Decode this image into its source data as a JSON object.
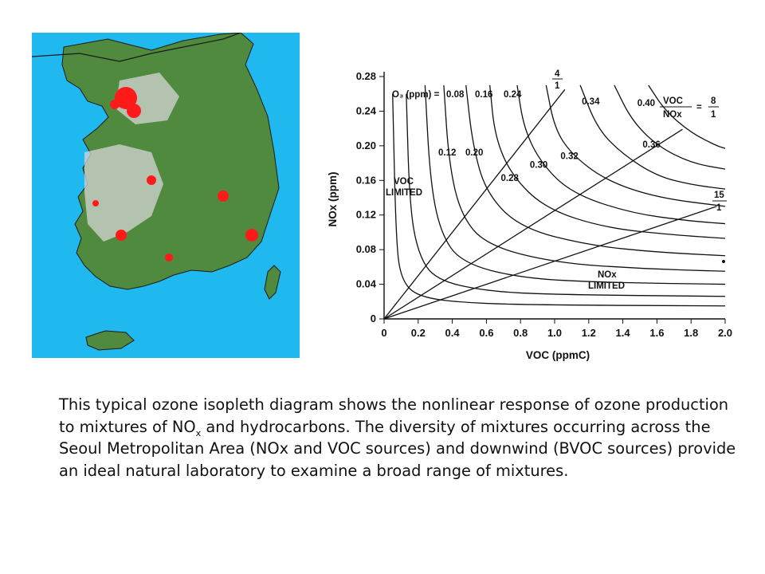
{
  "map": {
    "colors": {
      "sea": "#1fb8ef",
      "land": "#4f8a3e",
      "urban": "#ff1a1a",
      "bare": "#d6d6d6",
      "border": "#1a1a1a"
    }
  },
  "chart_data": {
    "type": "line",
    "xlabel": "VOC (ppmC)",
    "ylabel": "NOx (ppm)",
    "xlim": [
      0,
      2.0
    ],
    "ylim": [
      0,
      0.28
    ],
    "xticks": [
      "0",
      "0.2",
      "0.4",
      "0.6",
      "0.8",
      "1.0",
      "1.2",
      "1.4",
      "1.6",
      "1.8",
      "2.0"
    ],
    "yticks": [
      "0",
      "0.04",
      "0.08",
      "0.12",
      "0.16",
      "0.20",
      "0.24",
      "0.28"
    ],
    "ozone_prefix": "O₃ (ppm) =",
    "isopleth_labels": [
      "0.08",
      "0.12",
      "0.16",
      "0.20",
      "0.24",
      "0.28",
      "0.30",
      "0.32",
      "0.34",
      "0.36",
      "0.40"
    ],
    "isopleths": [
      {
        "o3": 0.08,
        "x": [
          0.05,
          0.07,
          0.1,
          0.2,
          0.5,
          1.0,
          2.0
        ],
        "y": [
          0.26,
          0.09,
          0.045,
          0.025,
          0.018,
          0.016,
          0.015
        ]
      },
      {
        "o3": 0.12,
        "x": [
          0.13,
          0.15,
          0.2,
          0.3,
          0.6,
          1.0,
          2.0
        ],
        "y": [
          0.26,
          0.13,
          0.075,
          0.045,
          0.032,
          0.028,
          0.026
        ]
      },
      {
        "o3": 0.16,
        "x": [
          0.24,
          0.27,
          0.33,
          0.45,
          0.8,
          1.3,
          2.0
        ],
        "y": [
          0.27,
          0.16,
          0.1,
          0.065,
          0.047,
          0.042,
          0.04
        ]
      },
      {
        "o3": 0.2,
        "x": [
          0.35,
          0.38,
          0.45,
          0.6,
          1.0,
          1.5,
          2.0
        ],
        "y": [
          0.27,
          0.18,
          0.12,
          0.085,
          0.065,
          0.058,
          0.055
        ]
      },
      {
        "o3": 0.24,
        "x": [
          0.48,
          0.52,
          0.6,
          0.8,
          1.2,
          1.6,
          2.0
        ],
        "y": [
          0.27,
          0.2,
          0.145,
          0.105,
          0.085,
          0.077,
          0.073
        ]
      },
      {
        "o3": 0.28,
        "x": [
          0.62,
          0.65,
          0.75,
          0.95,
          1.3,
          1.7,
          2.0
        ],
        "y": [
          0.27,
          0.21,
          0.165,
          0.127,
          0.105,
          0.097,
          0.093
        ]
      },
      {
        "o3": 0.3,
        "x": [
          0.78,
          0.82,
          0.92,
          1.1,
          1.45,
          1.8,
          2.0
        ],
        "y": [
          0.27,
          0.22,
          0.18,
          0.145,
          0.122,
          0.113,
          0.11
        ]
      },
      {
        "o3": 0.32,
        "x": [
          0.95,
          1.0,
          1.1,
          1.3,
          1.6,
          2.0
        ],
        "y": [
          0.27,
          0.22,
          0.19,
          0.16,
          0.14,
          0.13
        ]
      },
      {
        "o3": 0.34,
        "x": [
          1.15,
          1.25,
          1.4,
          1.6,
          1.8,
          2.0
        ],
        "y": [
          0.27,
          0.22,
          0.19,
          0.165,
          0.155,
          0.15
        ]
      },
      {
        "o3": 0.36,
        "x": [
          1.35,
          1.45,
          1.6,
          1.8,
          2.0
        ],
        "y": [
          0.27,
          0.23,
          0.2,
          0.18,
          0.173
        ]
      },
      {
        "o3": 0.4,
        "x": [
          1.55,
          1.65,
          1.8,
          1.95,
          2.0
        ],
        "y": [
          0.27,
          0.24,
          0.215,
          0.2,
          0.197
        ]
      }
    ],
    "ratio_lines": [
      {
        "ratio": "4/1",
        "x": [
          0,
          1.06
        ],
        "y": [
          0,
          0.265
        ]
      },
      {
        "ratio": "8/1",
        "x": [
          0,
          1.75
        ],
        "y": [
          0,
          0.219
        ]
      },
      {
        "ratio": "15/1",
        "x": [
          0,
          1.95
        ],
        "y": [
          0,
          0.13
        ]
      }
    ],
    "annotations": {
      "voc_limited": [
        "VOC",
        "LIMITED"
      ],
      "nox_limited": [
        "NOx",
        "LIMITED"
      ],
      "ratio_prefix_top": "VOC",
      "ratio_prefix_bottom": "NOx",
      "ratio_8": [
        "8",
        "1"
      ],
      "ratio_4": [
        "4",
        "1"
      ],
      "ratio_15": [
        "15",
        "1"
      ]
    }
  },
  "caption": {
    "part1": "This typical ozone isopleth diagram shows the nonlinear response of ozone production to mixtures of NO",
    "sub": "x",
    "part2": " and hydrocarbons. The diversity of mixtures occurring across the Seoul Metropolitan Area (NOx and VOC sources) and downwind (BVOC sources) provide an ideal natural laboratory to examine a broad range of mixtures."
  }
}
